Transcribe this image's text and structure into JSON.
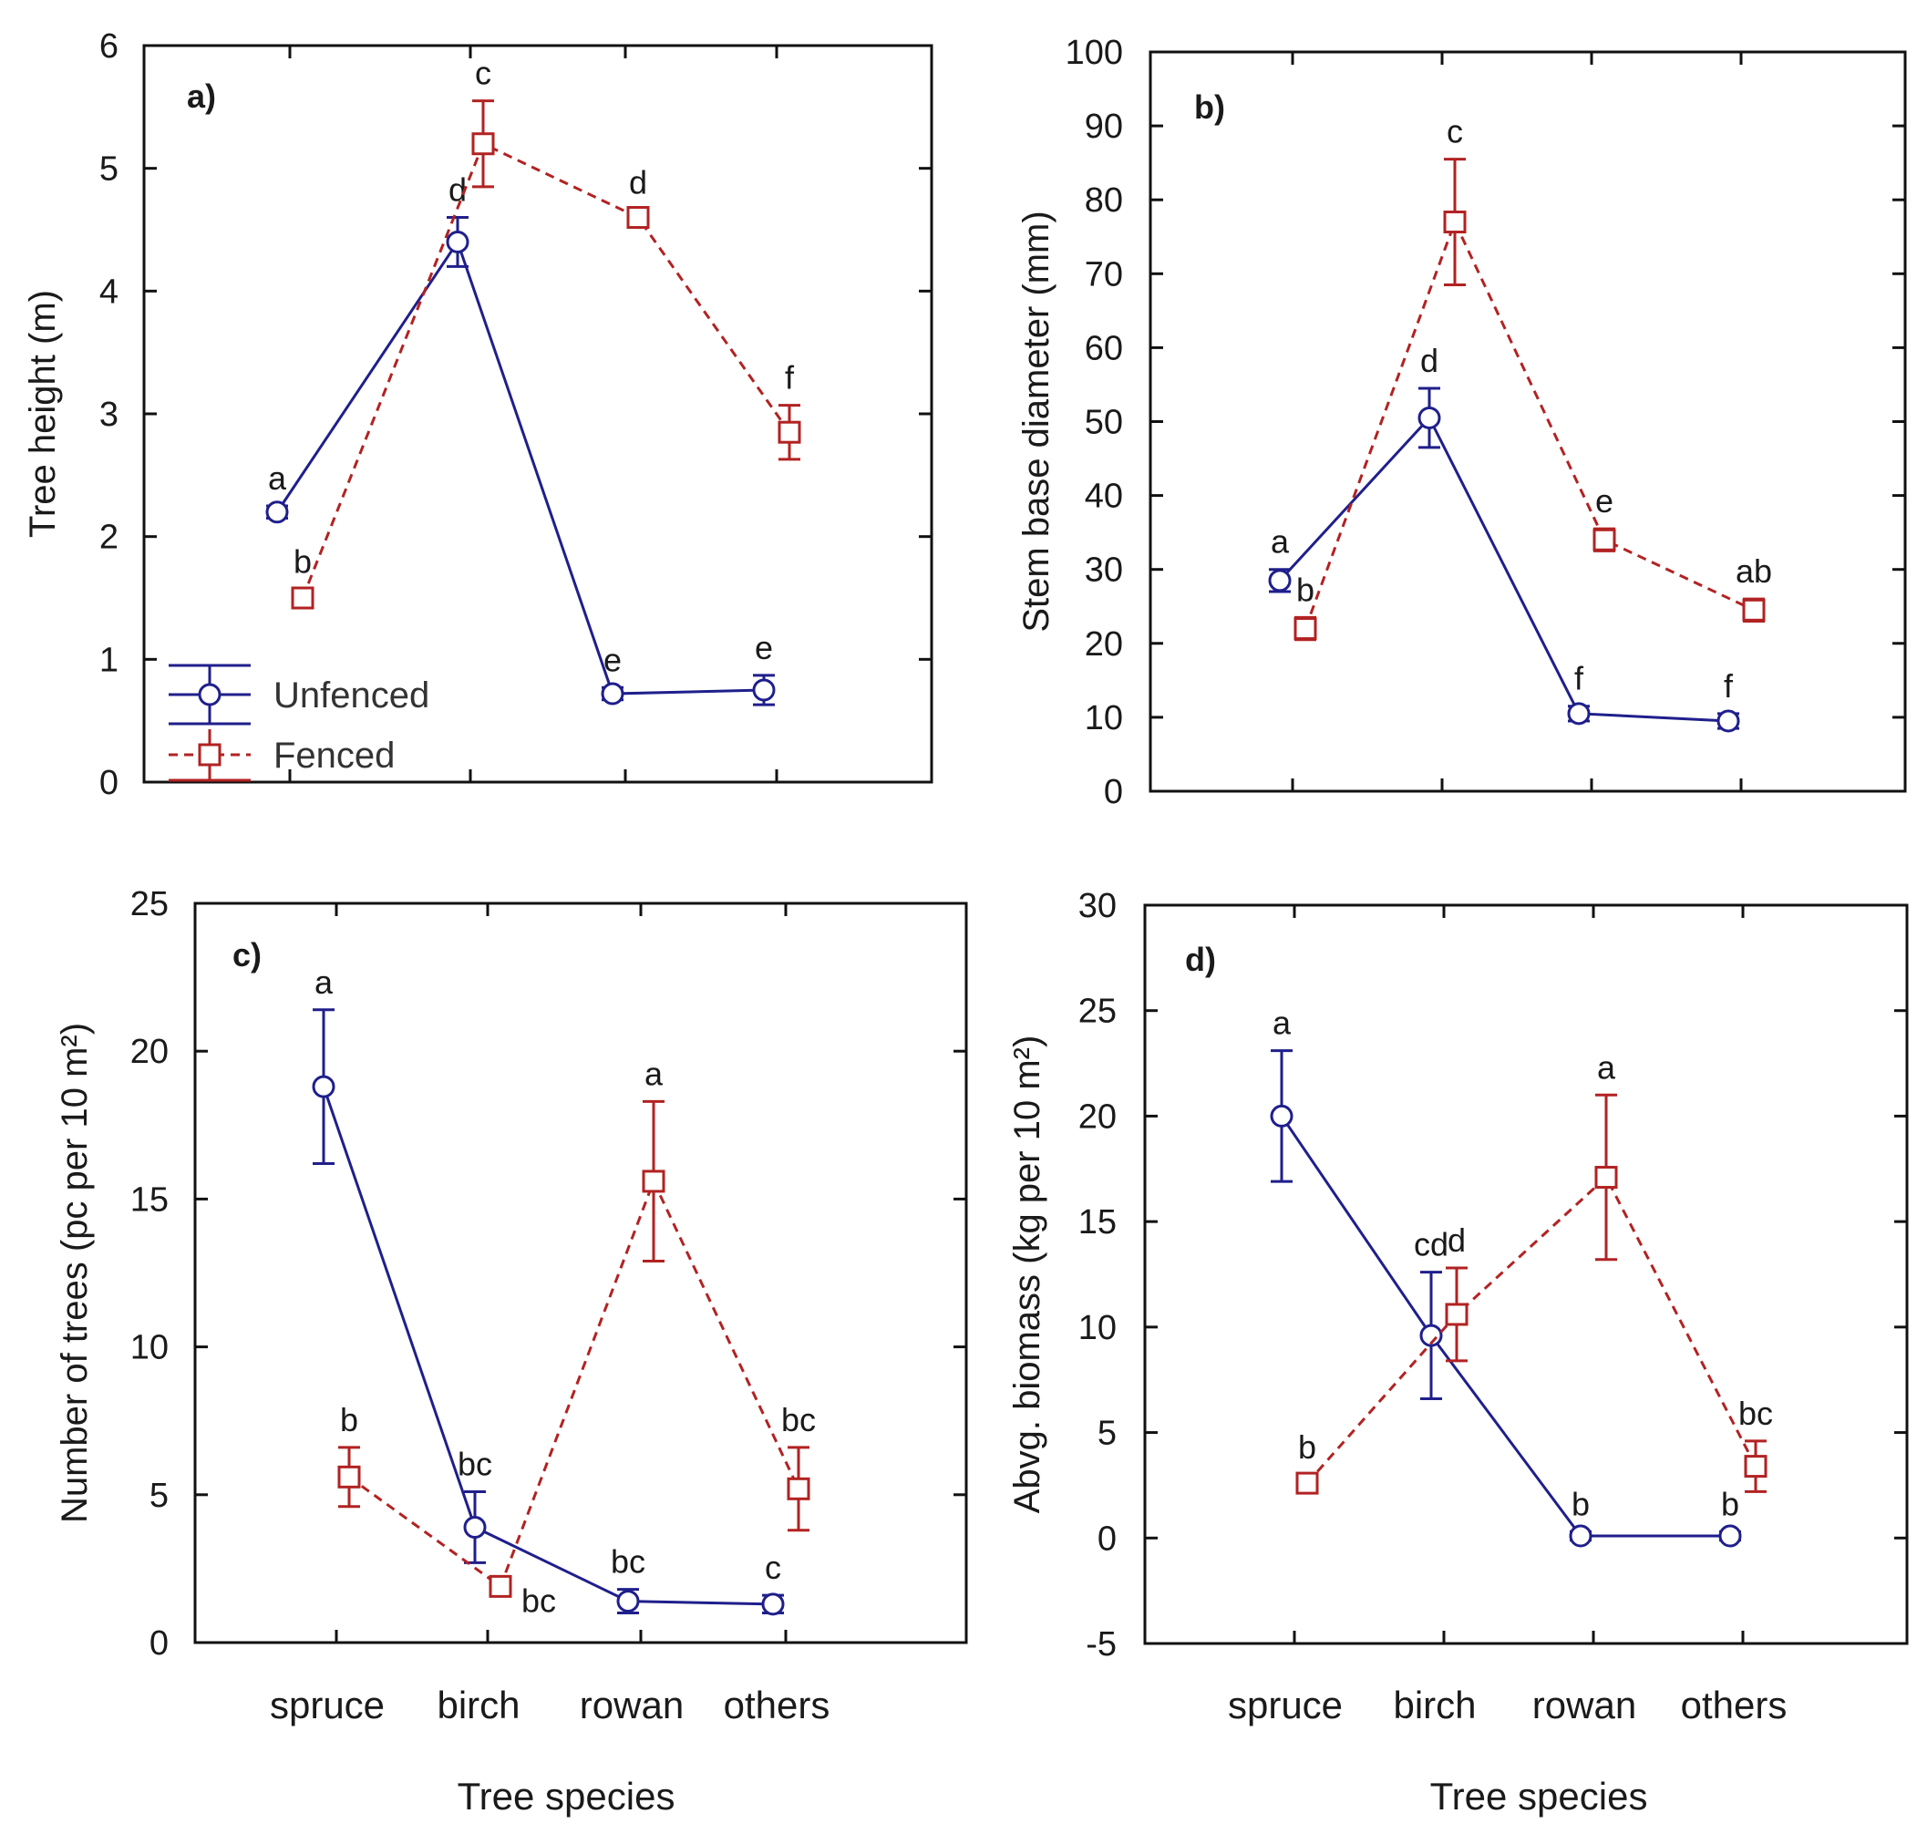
{
  "colors": {
    "unfenced": "#1f1f8c",
    "fenced": "#b22222",
    "axis": "#111111"
  },
  "legend": {
    "unfenced_label": "Unfenced",
    "fenced_label": "Fenced"
  },
  "chart_data": [
    {
      "id": "a",
      "type": "line",
      "panel_label": "a)",
      "ylabel": "Tree height (m)",
      "xlabel": "",
      "ylim": [
        0,
        6
      ],
      "yticks": [
        0,
        1,
        2,
        3,
        4,
        5,
        6
      ],
      "categories": [
        "spruce",
        "birch",
        "rowan",
        "others"
      ],
      "show_category_labels": false,
      "show_legend": true,
      "series": [
        {
          "name": "Unfenced",
          "marker": "circle",
          "line": "solid",
          "values": [
            2.2,
            4.4,
            0.72,
            0.75
          ],
          "errors": [
            0.05,
            0.2,
            0.05,
            0.12
          ],
          "labels": [
            "a",
            "d",
            "e",
            "e"
          ]
        },
        {
          "name": "Fenced",
          "marker": "square",
          "line": "dashed",
          "values": [
            1.5,
            5.2,
            4.6,
            2.85
          ],
          "errors": [
            0.07,
            0.35,
            0.06,
            0.22
          ],
          "labels": [
            "b",
            "c",
            "d",
            "f"
          ]
        }
      ]
    },
    {
      "id": "b",
      "type": "line",
      "panel_label": "b)",
      "ylabel": "Stem base diameter (mm)",
      "xlabel": "",
      "ylim": [
        0,
        100
      ],
      "yticks": [
        0,
        10,
        20,
        30,
        40,
        50,
        60,
        70,
        80,
        90,
        100
      ],
      "categories": [
        "spruce",
        "birch",
        "rowan",
        "others"
      ],
      "show_category_labels": false,
      "show_legend": false,
      "series": [
        {
          "name": "Unfenced",
          "marker": "circle",
          "line": "solid",
          "values": [
            28.5,
            50.5,
            10.5,
            9.5
          ],
          "errors": [
            1.5,
            4,
            1,
            1
          ],
          "labels": [
            "a",
            "d",
            "f",
            "f"
          ]
        },
        {
          "name": "Fenced",
          "marker": "square",
          "line": "dashed",
          "values": [
            22,
            77,
            34,
            24.5
          ],
          "errors": [
            1.5,
            8.5,
            1.5,
            1.5
          ],
          "labels": [
            "b",
            "c",
            "e",
            "ab"
          ]
        }
      ]
    },
    {
      "id": "c",
      "type": "line",
      "panel_label": "c)",
      "ylabel": "Number of trees (pc per 10 m²)",
      "xlabel": "Tree species",
      "ylim": [
        0,
        25
      ],
      "yticks": [
        0,
        5,
        10,
        15,
        20,
        25
      ],
      "categories": [
        "spruce",
        "birch",
        "rowan",
        "others"
      ],
      "show_category_labels": true,
      "show_legend": false,
      "series": [
        {
          "name": "Unfenced",
          "marker": "circle",
          "line": "solid",
          "values": [
            18.8,
            3.9,
            1.4,
            1.3
          ],
          "errors": [
            2.6,
            1.2,
            0.4,
            0.3
          ],
          "labels": [
            "a",
            "bc",
            "bc",
            "c"
          ]
        },
        {
          "name": "Fenced",
          "marker": "square",
          "line": "dashed",
          "values": [
            5.6,
            1.9,
            15.6,
            5.2
          ],
          "errors": [
            1.0,
            0.3,
            2.7,
            1.4
          ],
          "labels": [
            "b",
            "bc",
            "a",
            "bc"
          ]
        }
      ]
    },
    {
      "id": "d",
      "type": "line",
      "panel_label": "d)",
      "ylabel": "Abvg. biomass (kg per 10 m²)",
      "xlabel": "Tree species",
      "ylim": [
        -5,
        30
      ],
      "yticks": [
        -5,
        0,
        5,
        10,
        15,
        20,
        25,
        30
      ],
      "categories": [
        "spruce",
        "birch",
        "rowan",
        "others"
      ],
      "show_category_labels": true,
      "show_legend": false,
      "series": [
        {
          "name": "Unfenced",
          "marker": "circle",
          "line": "solid",
          "values": [
            20,
            9.6,
            0.1,
            0.1
          ],
          "errors": [
            3.1,
            3.0,
            0.2,
            0.2
          ],
          "labels": [
            "a",
            "cd",
            "b",
            "b"
          ]
        },
        {
          "name": "Fenced",
          "marker": "square",
          "line": "dashed",
          "values": [
            2.6,
            10.6,
            17.1,
            3.4
          ],
          "errors": [
            0.4,
            2.2,
            3.9,
            1.2
          ],
          "labels": [
            "b",
            "d",
            "a",
            "bc"
          ]
        }
      ]
    }
  ]
}
